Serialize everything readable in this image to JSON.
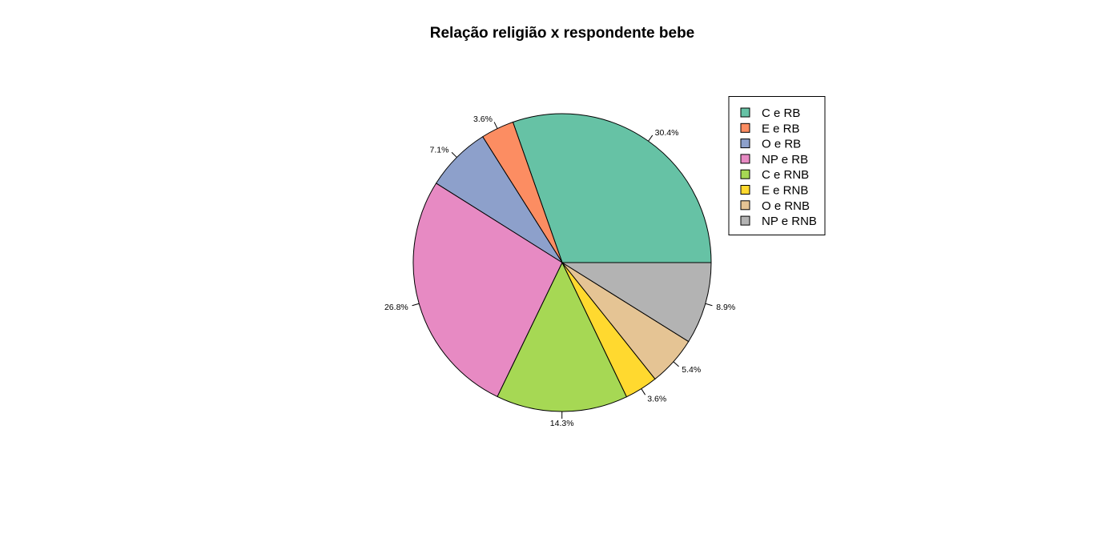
{
  "chart_data": {
    "type": "pie",
    "title": "Relação religião x respondente bebe",
    "categories": [
      "C e RB",
      "E e RB",
      "O e RB",
      "NP e RB",
      "C e RNB",
      "E e RNB",
      "O e RNB",
      "NP e RNB"
    ],
    "values": [
      30.4,
      3.6,
      7.1,
      26.8,
      14.3,
      3.6,
      5.4,
      8.9
    ],
    "labels": [
      "30.4%",
      "3.6%",
      "7.1%",
      "26.8%",
      "14.3%",
      "3.6%",
      "5.4%",
      "8.9%"
    ],
    "colors": [
      "#66c2a5",
      "#fc8d62",
      "#8da0cb",
      "#e78ac3",
      "#a6d854",
      "#ffd92f",
      "#e5c494",
      "#b3b3b3"
    ],
    "start": "3 o'clock, counter-clockwise",
    "legend_position": "top-right"
  }
}
